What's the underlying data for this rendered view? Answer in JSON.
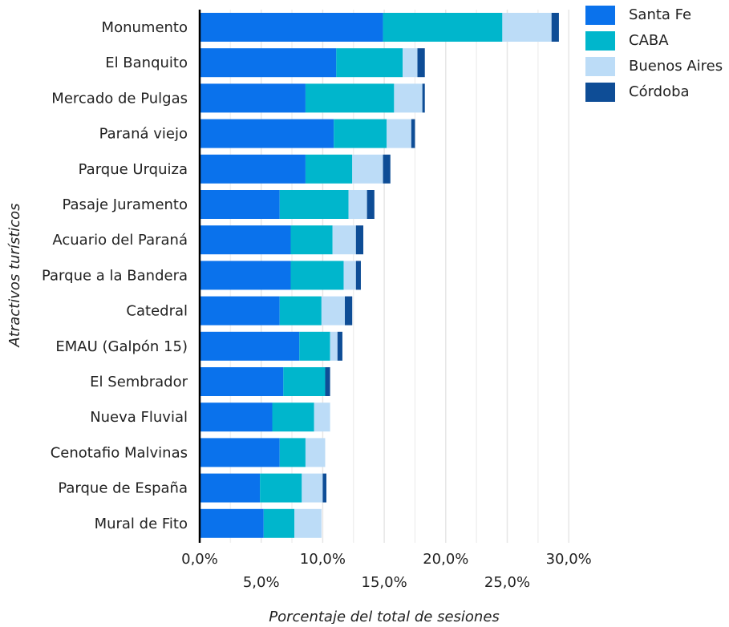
{
  "chart_data": {
    "type": "bar",
    "orientation": "horizontal",
    "stacked": true,
    "xlabel": "Porcentaje del total de sesiones",
    "ylabel": "Atractivos turísticos",
    "xlim": [
      0,
      31
    ],
    "x_ticks": [
      0,
      5,
      10,
      15,
      20,
      25,
      30
    ],
    "x_tick_labels": [
      "0,0%",
      "5,0%",
      "10,0%",
      "15,0%",
      "20,0%",
      "25,0%",
      "30,0%"
    ],
    "grid": "vertical",
    "legend_position": "top-right",
    "categories": [
      "Monumento",
      "El Banquito",
      "Mercado de Pulgas",
      "Paraná viejo",
      "Parque Urquiza",
      "Pasaje Juramento",
      "Acuario del Paraná",
      "Parque a la Bandera",
      "Catedral",
      "EMAU (Galpón 15)",
      "El Sembrador",
      "Nueva Fluvial",
      "Cenotafio Malvinas",
      "Parque de España",
      "Mural de Fito"
    ],
    "series": [
      {
        "name": "Santa Fe",
        "color": "#0a72ec",
        "values": [
          14.9,
          11.1,
          8.6,
          10.9,
          8.6,
          6.5,
          7.4,
          7.4,
          6.5,
          8.1,
          6.8,
          5.9,
          6.5,
          4.9,
          5.2
        ]
      },
      {
        "name": "CABA",
        "color": "#00b6cc",
        "values": [
          9.7,
          5.4,
          7.2,
          4.3,
          3.8,
          5.6,
          3.4,
          4.3,
          3.4,
          2.5,
          3.4,
          3.4,
          2.1,
          3.4,
          2.5
        ]
      },
      {
        "name": "Buenos Aires",
        "color": "#bcdcf7",
        "values": [
          4.0,
          1.2,
          2.3,
          2.0,
          2.5,
          1.5,
          1.9,
          1.0,
          1.9,
          0.6,
          0.0,
          1.3,
          1.6,
          1.7,
          2.2
        ]
      },
      {
        "name": "Córdoba",
        "color": "#0e4d96",
        "values": [
          0.6,
          0.6,
          0.2,
          0.3,
          0.6,
          0.6,
          0.6,
          0.4,
          0.6,
          0.4,
          0.4,
          0.0,
          0.0,
          0.3,
          0.0
        ]
      }
    ]
  }
}
